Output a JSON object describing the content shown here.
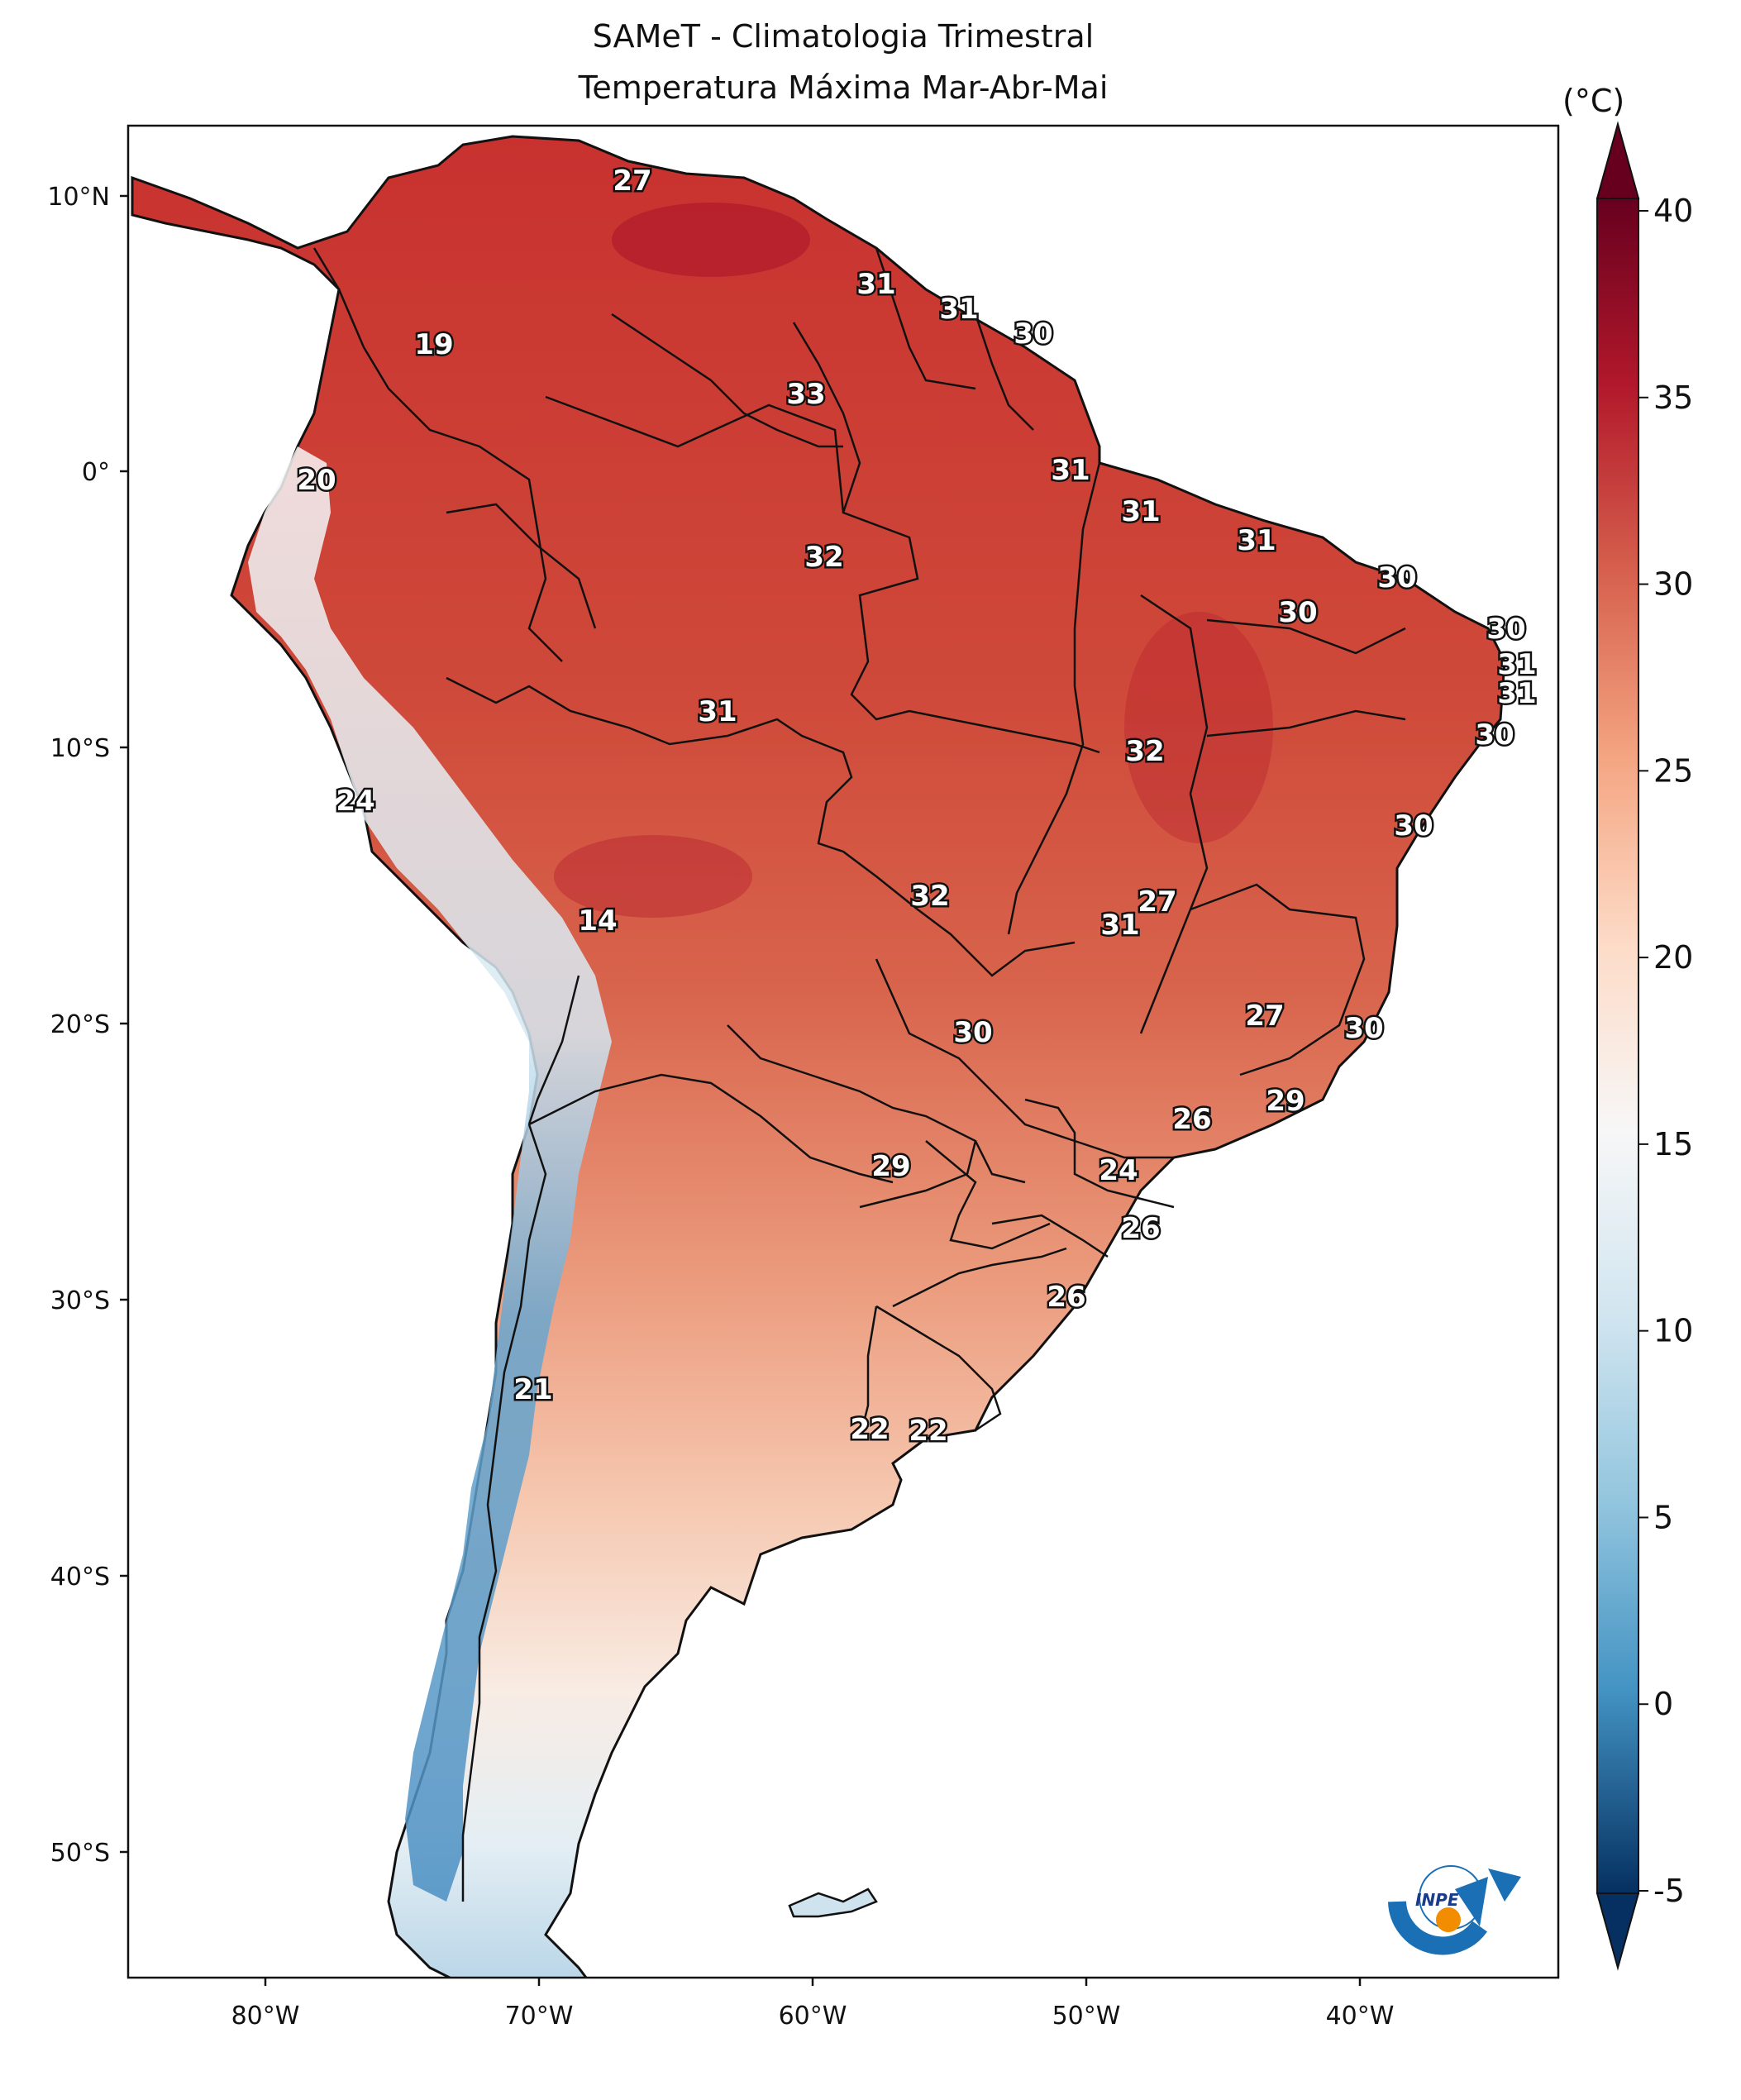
{
  "title_line1": "SAMeT - Climatologia Trimestral",
  "title_line2": "Temperatura Máxima   Mar-Abr-Mai",
  "colorbar": {
    "unit": "(°C)",
    "ticks": [
      "40",
      "35",
      "30",
      "25",
      "20",
      "15",
      "10",
      "5",
      "0",
      "-5"
    ],
    "colors": [
      "#67001f",
      "#b2182b",
      "#d6604d",
      "#f4a582",
      "#fddbc7",
      "#f7f7f7",
      "#d1e5f0",
      "#92c5de",
      "#4393c3",
      "#2166ac",
      "#053061"
    ]
  },
  "axes": {
    "lon_ticks": [
      "80°W",
      "70°W",
      "60°W",
      "50°W",
      "40°W"
    ],
    "lat_ticks": [
      "10°N",
      "0°",
      "10°S",
      "20°S",
      "30°S",
      "40°S",
      "50°S"
    ]
  },
  "labels": [
    "27",
    "31",
    "31",
    "30",
    "19",
    "33",
    "31",
    "20",
    "31",
    "31",
    "30",
    "32",
    "30",
    "30",
    "31",
    "31",
    "31",
    "30",
    "32",
    "24",
    "30",
    "32",
    "27",
    "14",
    "31",
    "30",
    "27",
    "30",
    "26",
    "29",
    "29",
    "24",
    "26",
    "26",
    "21",
    "22",
    "22"
  ],
  "logo": {
    "text": "INPE"
  }
}
